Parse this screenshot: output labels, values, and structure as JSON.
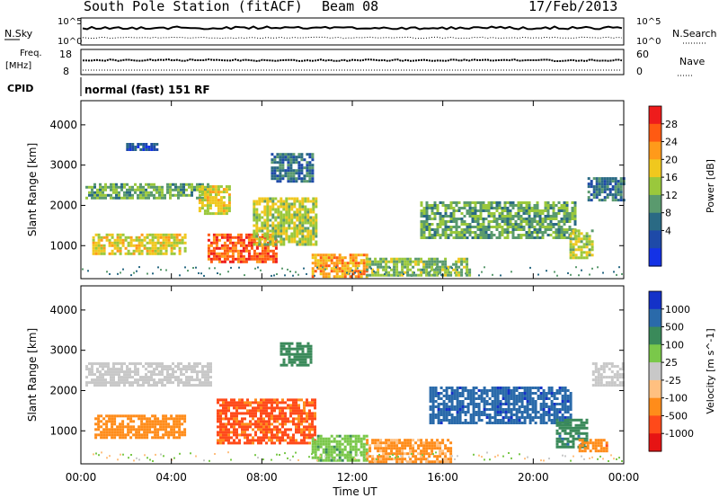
{
  "header": {
    "station": "South Pole Station (fitACF)",
    "beam": "Beam 08",
    "date": "17/Feb/2013",
    "mode": "normal (fast) 151 RF"
  },
  "status_panels": {
    "nsky_label": "N.Sky",
    "nsearch_label": "N.Search",
    "freq_label_1": "Freq.",
    "freq_label_2": "[MHz]",
    "nave_label": "Nave",
    "cpid_label": "CPID",
    "noise_ticks_left": [
      "10^5",
      "10^0"
    ],
    "noise_ticks_right": [
      "10^5",
      "10^0"
    ],
    "freq_ticks": [
      "18",
      "8"
    ],
    "nave_ticks": [
      "60",
      "0"
    ]
  },
  "chart_data": [
    {
      "type": "heatmap",
      "title": "",
      "variable": "Power",
      "xlabel": "",
      "ylabel": "Slant Range [km]",
      "x_ticks": [
        "00:00",
        "04:00",
        "08:00",
        "12:00",
        "16:00",
        "20:00",
        "00:00"
      ],
      "y_ticks": [
        "1000",
        "2000",
        "3000",
        "4000"
      ],
      "xlim_hours": [
        0,
        24
      ],
      "ylim_km": [
        180,
        4600
      ],
      "colorbar": {
        "label": "Power [dB]",
        "ticks": [
          "28",
          "24",
          "20",
          "16",
          "12",
          "8",
          "4"
        ],
        "colors": [
          "#ee1c1c",
          "#ff5a12",
          "#ff9a1a",
          "#f0c81e",
          "#9ac83c",
          "#5a9a6e",
          "#2a6a84",
          "#1e4aa8",
          "#1432e6"
        ]
      },
      "regions": [
        {
          "t0": 0.2,
          "t1": 5.6,
          "r0": 2150,
          "r1": 2550,
          "value": 12
        },
        {
          "t0": 5.2,
          "t1": 6.6,
          "r0": 1800,
          "r1": 2500,
          "value": 18
        },
        {
          "t0": 0.5,
          "t1": 4.6,
          "r0": 800,
          "r1": 1300,
          "value": 18
        },
        {
          "t0": 5.6,
          "t1": 8.6,
          "r0": 600,
          "r1": 1300,
          "value": 26
        },
        {
          "t0": 7.6,
          "t1": 10.4,
          "r0": 1000,
          "r1": 2200,
          "value": 16
        },
        {
          "t0": 8.4,
          "t1": 10.2,
          "r0": 2600,
          "r1": 3300,
          "value": 8
        },
        {
          "t0": 10.2,
          "t1": 12.6,
          "r0": 250,
          "r1": 800,
          "value": 22
        },
        {
          "t0": 12.6,
          "t1": 17.2,
          "r0": 250,
          "r1": 700,
          "value": 14
        },
        {
          "t0": 15.0,
          "t1": 21.8,
          "r0": 1200,
          "r1": 2100,
          "value": 12
        },
        {
          "t0": 21.6,
          "t1": 22.6,
          "r0": 700,
          "r1": 1400,
          "value": 16
        },
        {
          "t0": 22.4,
          "t1": 24.0,
          "r0": 2100,
          "r1": 2700,
          "value": 8
        },
        {
          "t0": 2.0,
          "t1": 3.4,
          "r0": 3400,
          "r1": 3550,
          "value": 4
        }
      ]
    },
    {
      "type": "heatmap",
      "title": "",
      "variable": "Velocity",
      "xlabel": "Time UT",
      "ylabel": "Slant Range [km]",
      "x_ticks": [
        "00:00",
        "04:00",
        "08:00",
        "12:00",
        "16:00",
        "20:00",
        "00:00"
      ],
      "y_ticks": [
        "1000",
        "2000",
        "3000",
        "4000"
      ],
      "xlim_hours": [
        0,
        24
      ],
      "ylim_km": [
        180,
        4600
      ],
      "colorbar": {
        "label": "Velocity [m s^-1]",
        "ticks": [
          "1000",
          "500",
          "100",
          "25",
          "-25",
          "-100",
          "-500",
          "-1000"
        ],
        "colors": [
          "#1432c8",
          "#2a6aaa",
          "#3a8a5a",
          "#7ac84a",
          "#c8c8c8",
          "#ffc080",
          "#ff8c1a",
          "#ff4a1a",
          "#e61414"
        ]
      },
      "regions": [
        {
          "t0": 0.2,
          "t1": 5.8,
          "r0": 2100,
          "r1": 2700,
          "value": 0
        },
        {
          "t0": 0.6,
          "t1": 4.6,
          "r0": 800,
          "r1": 1400,
          "value": -300
        },
        {
          "t0": 6.0,
          "t1": 10.4,
          "r0": 700,
          "r1": 1800,
          "value": -600
        },
        {
          "t0": 8.8,
          "t1": 10.2,
          "r0": 2600,
          "r1": 3200,
          "value": 300
        },
        {
          "t0": 10.2,
          "t1": 12.6,
          "r0": 250,
          "r1": 900,
          "value": 80
        },
        {
          "t0": 12.6,
          "t1": 16.4,
          "r0": 250,
          "r1": 800,
          "value": -120
        },
        {
          "t0": 15.4,
          "t1": 21.6,
          "r0": 1200,
          "r1": 2100,
          "value": 800
        },
        {
          "t0": 21.0,
          "t1": 22.4,
          "r0": 600,
          "r1": 1300,
          "value": 400
        },
        {
          "t0": 22.6,
          "t1": 24.0,
          "r0": 2100,
          "r1": 2700,
          "value": 0
        },
        {
          "t0": 22.0,
          "t1": 23.2,
          "r0": 500,
          "r1": 800,
          "value": -400
        }
      ]
    }
  ]
}
